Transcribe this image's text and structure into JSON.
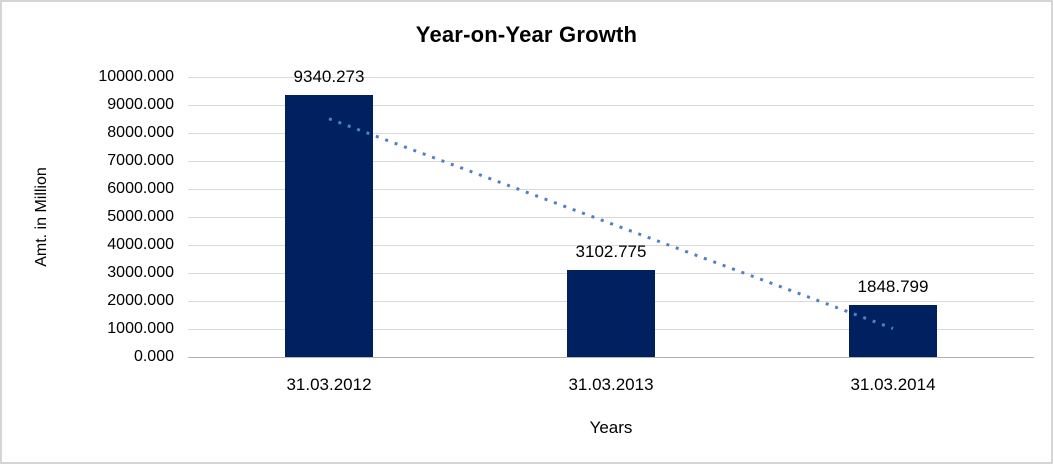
{
  "window": {
    "background_color": "#ffffff",
    "frame_border_color": "#d5d5d5"
  },
  "chart_data": {
    "type": "bar",
    "title": "Year-on-Year Growth",
    "xlabel": "Years",
    "ylabel": "Amt. in Million",
    "categories": [
      "31.03.2012",
      "31.03.2013",
      "31.03.2014"
    ],
    "values": [
      9340.273,
      3102.775,
      1848.799
    ],
    "data_labels": [
      "9340.273",
      "3102.775",
      "1848.799"
    ],
    "ylim": [
      0,
      10000
    ],
    "ytick_step": 1000,
    "ytick_labels_top_to_bottom": [
      "10000.000",
      "9000.000",
      "8000.000",
      "7000.000",
      "6000.000",
      "5000.000",
      "4000.000",
      "3000.000",
      "2000.000",
      "1000.000",
      "0.000"
    ],
    "grid": "horizontal",
    "legend": "none",
    "colors": {
      "bar": "#002060",
      "gridline": "#d9d9d9",
      "axis_line": "#b3b3b3",
      "text": "#000000",
      "trendline": "#4f81bd"
    },
    "trendline": {
      "present": true,
      "fit": "linear",
      "style": "dotted",
      "color": "#4f81bd"
    }
  }
}
